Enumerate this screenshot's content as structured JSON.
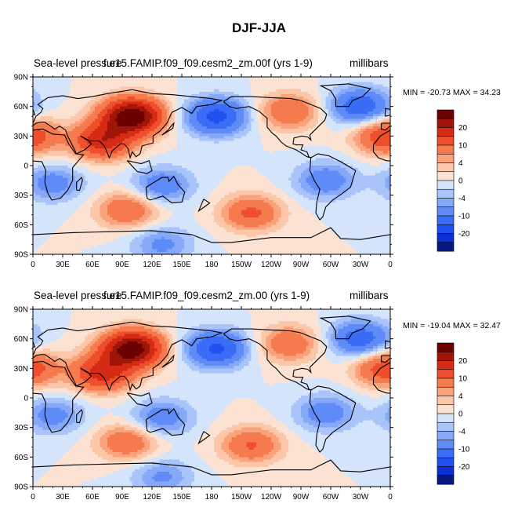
{
  "figure": {
    "title": "DJF-JJA",
    "panels": [
      {
        "left_label": "Sea-level pressure",
        "center_label": "f.e15.FAMIP.f09_f09.cesm2_zm.00f (yrs 1-9)",
        "right_label": "millibars",
        "minmax_text": "MIN = -20.73  MAX =  34.23"
      },
      {
        "left_label": "Sea-level pressure",
        "center_label": "f.e15.FAMIP.f09_f09.cesm2_zm.00 (yrs 1-9)",
        "right_label": "millibars",
        "minmax_text": "MIN = -19.04  MAX =  32.47"
      }
    ]
  },
  "chart_data": {
    "type": "heatmap",
    "title": "DJF-JJA",
    "variable": "Sea-level pressure",
    "units": "millibars",
    "x_ticks": [
      "0",
      "30E",
      "60E",
      "90E",
      "120E",
      "150E",
      "180",
      "150W",
      "120W",
      "90W",
      "60W",
      "30W",
      "0"
    ],
    "y_ticks": [
      "90N",
      "60N",
      "30N",
      "0",
      "30S",
      "60S",
      "90S"
    ],
    "xlim": [
      0,
      360
    ],
    "ylim": [
      -90,
      90
    ],
    "colorbar_labels": [
      "20",
      "10",
      "4",
      "0",
      "-4",
      "-10",
      "-20"
    ],
    "colorbar_levels": [
      -25,
      -20,
      -15,
      -10,
      -6,
      -4,
      -2,
      0,
      2,
      4,
      6,
      10,
      15,
      20,
      25
    ],
    "colorbar_colors": [
      "#041880",
      "#0a2fd6",
      "#1f50f0",
      "#3a6cf5",
      "#5e8bf7",
      "#86a8f8",
      "#a9c4fa",
      "#d4e4fb",
      "#fbe2d2",
      "#fcc6a8",
      "#f9a27b",
      "#f57a4e",
      "#ee4e2b",
      "#d52b15",
      "#a11508",
      "#6b0200"
    ],
    "series": [
      {
        "name": "f.e15.FAMIP.f09_f09.cesm2_zm.00f (yrs 1-9)",
        "min": -20.73,
        "max": 34.23
      },
      {
        "name": "f.e15.FAMIP.f09_f09.cesm2_zm.00 (yrs 1-9)",
        "min": -19.04,
        "max": 32.47
      }
    ],
    "features": [
      {
        "type": "high",
        "lon": 100,
        "lat": 50,
        "value": 30
      },
      {
        "type": "high",
        "lon": 70,
        "lat": 25,
        "value": 18
      },
      {
        "type": "high",
        "lon": 355,
        "lat": 30,
        "value": 14
      },
      {
        "type": "high",
        "lon": 258,
        "lat": 55,
        "value": 10
      },
      {
        "type": "high",
        "lon": 95,
        "lat": -45,
        "value": 10
      },
      {
        "type": "high",
        "lon": 220,
        "lat": -48,
        "value": 11
      },
      {
        "type": "low",
        "lon": 185,
        "lat": 50,
        "value": -17
      },
      {
        "type": "low",
        "lon": 330,
        "lat": 60,
        "value": -14
      },
      {
        "type": "low",
        "lon": 20,
        "lat": -18,
        "value": -8
      },
      {
        "type": "low",
        "lon": 130,
        "lat": -20,
        "value": -9
      },
      {
        "type": "low",
        "lon": 295,
        "lat": -15,
        "value": -9
      },
      {
        "type": "low",
        "lon": 130,
        "lat": -80,
        "value": -7
      }
    ]
  }
}
